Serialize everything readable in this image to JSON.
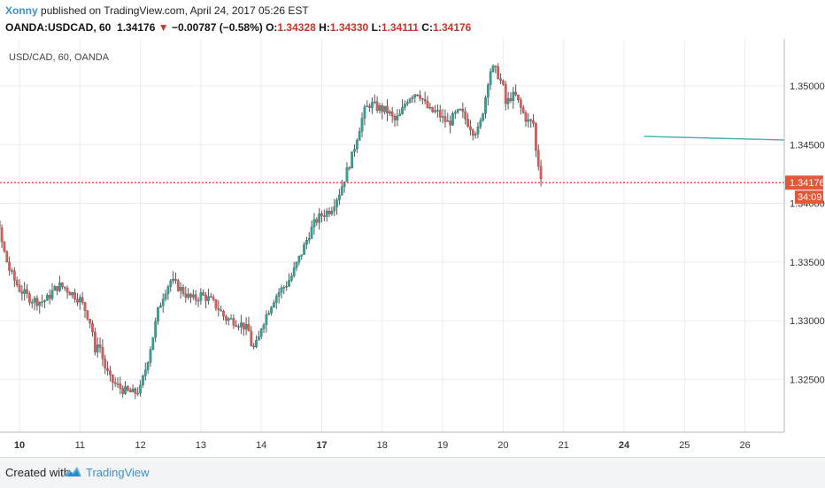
{
  "header": {
    "author": "Xonny",
    "published_text": "published on TradingView.com, April 24, 2017 05:26 EST",
    "symbol_line": "OANDA:USDCAD, 60",
    "last_price": "1.34176",
    "change_arrow": "▼",
    "change": "−0.00787 (−0.58%)",
    "o_label": "O:",
    "o_value": "1.34328",
    "h_label": "H:",
    "h_value": "1.34330",
    "l_label": "L:",
    "l_value": "1.34111",
    "c_label": "C:",
    "c_value": "1.34176"
  },
  "footer": {
    "created_with": "Created with",
    "brand": "TradingView"
  },
  "colors": {
    "up": "#26a69a",
    "down": "#ef5350",
    "price_line": "#e53935",
    "trend": "#4db6ac",
    "grid": "#e9ecef",
    "axis_text": "#333333",
    "price_label_bg": "#e05a3a"
  },
  "chart_data": {
    "type": "candlestick",
    "title": "USD/CAD, 60, OANDA",
    "y_ticks": [
      "1.35000",
      "1.34500",
      "1.34000",
      "1.33500",
      "1.33000",
      "1.32500"
    ],
    "ylim": [
      1.3205,
      1.354
    ],
    "x_ticks": [
      {
        "label": "10",
        "bold": true
      },
      {
        "label": "11",
        "bold": false
      },
      {
        "label": "12",
        "bold": false
      },
      {
        "label": "13",
        "bold": false
      },
      {
        "label": "14",
        "bold": false
      },
      {
        "label": "17",
        "bold": true
      },
      {
        "label": "18",
        "bold": false
      },
      {
        "label": "19",
        "bold": false
      },
      {
        "label": "20",
        "bold": false
      },
      {
        "label": "21",
        "bold": false
      },
      {
        "label": "24",
        "bold": true
      },
      {
        "label": "25",
        "bold": false
      },
      {
        "label": "26",
        "bold": false
      }
    ],
    "last_price": 1.34176,
    "last_price_label": "1.34176",
    "countdown_label": "34:09",
    "trendline": {
      "from_day": 20.33,
      "from_price": 1.3457,
      "to_day": 27.0,
      "to_price": 1.3454
    },
    "close_path": [
      [
        9.0,
        1.3418
      ],
      [
        9.1,
        1.3416
      ],
      [
        9.25,
        1.3421
      ],
      [
        9.4,
        1.3422
      ],
      [
        9.48,
        1.3418
      ],
      [
        9.55,
        1.3405
      ],
      [
        9.62,
        1.339
      ],
      [
        9.68,
        1.3372
      ],
      [
        9.75,
        1.3358
      ],
      [
        9.82,
        1.3345
      ],
      [
        9.9,
        1.3336
      ],
      [
        10.0,
        1.3327
      ],
      [
        10.1,
        1.3322
      ],
      [
        10.2,
        1.3318
      ],
      [
        10.35,
        1.3316
      ],
      [
        10.45,
        1.3318
      ],
      [
        10.55,
        1.3325
      ],
      [
        10.65,
        1.333
      ],
      [
        10.75,
        1.3328
      ],
      [
        10.85,
        1.3324
      ],
      [
        11.0,
        1.3318
      ],
      [
        11.1,
        1.3308
      ],
      [
        11.2,
        1.3295
      ],
      [
        11.25,
        1.327
      ],
      [
        11.3,
        1.3285
      ],
      [
        11.4,
        1.3262
      ],
      [
        11.5,
        1.325
      ],
      [
        11.6,
        1.3245
      ],
      [
        11.75,
        1.324
      ],
      [
        11.9,
        1.3238
      ],
      [
        12.0,
        1.3242
      ],
      [
        12.1,
        1.3262
      ],
      [
        12.2,
        1.3285
      ],
      [
        12.3,
        1.331
      ],
      [
        12.4,
        1.3325
      ],
      [
        12.5,
        1.3334
      ],
      [
        12.6,
        1.333
      ],
      [
        12.7,
        1.3325
      ],
      [
        12.8,
        1.332
      ],
      [
        12.9,
        1.3318
      ],
      [
        13.0,
        1.3322
      ],
      [
        13.15,
        1.3318
      ],
      [
        13.3,
        1.331
      ],
      [
        13.4,
        1.3302
      ],
      [
        13.55,
        1.33
      ],
      [
        13.7,
        1.3296
      ],
      [
        13.8,
        1.329
      ],
      [
        13.85,
        1.3275
      ],
      [
        13.9,
        1.3278
      ],
      [
        13.95,
        1.3283
      ],
      [
        14.0,
        1.3295
      ],
      [
        14.1,
        1.3307
      ],
      [
        14.2,
        1.3318
      ],
      [
        14.3,
        1.3325
      ],
      [
        14.4,
        1.333
      ],
      [
        14.5,
        1.3338
      ],
      [
        14.6,
        1.335
      ],
      [
        14.7,
        1.3362
      ],
      [
        14.8,
        1.3375
      ],
      [
        14.9,
        1.3385
      ],
      [
        15.0,
        1.339
      ],
      [
        15.15,
        1.3395
      ],
      [
        15.3,
        1.341
      ],
      [
        15.4,
        1.3425
      ],
      [
        15.5,
        1.344
      ],
      [
        15.6,
        1.346
      ],
      [
        15.7,
        1.3478
      ],
      [
        15.8,
        1.3485
      ],
      [
        15.9,
        1.3482
      ],
      [
        16.0,
        1.348
      ],
      [
        16.1,
        1.3478
      ],
      [
        16.2,
        1.347
      ],
      [
        16.3,
        1.3475
      ],
      [
        16.4,
        1.3488
      ],
      [
        16.5,
        1.3493
      ],
      [
        16.6,
        1.3495
      ],
      [
        16.7,
        1.3485
      ],
      [
        16.8,
        1.3478
      ],
      [
        16.9,
        1.3478
      ],
      [
        17.0,
        1.3472
      ],
      [
        17.1,
        1.3468
      ],
      [
        17.2,
        1.3475
      ],
      [
        17.3,
        1.3478
      ],
      [
        17.4,
        1.347
      ],
      [
        17.5,
        1.3462
      ],
      [
        17.6,
        1.3462
      ],
      [
        17.7,
        1.3488
      ],
      [
        17.75,
        1.3505
      ],
      [
        17.8,
        1.3515
      ],
      [
        17.9,
        1.3512
      ],
      [
        18.0,
        1.3498
      ],
      [
        18.05,
        1.3482
      ],
      [
        18.1,
        1.349
      ],
      [
        18.2,
        1.3492
      ],
      [
        18.3,
        1.348
      ],
      [
        18.4,
        1.347
      ],
      [
        18.5,
        1.3468
      ],
      [
        18.55,
        1.344
      ],
      [
        18.6,
        1.343
      ],
      [
        18.65,
        1.3418
      ]
    ]
  }
}
